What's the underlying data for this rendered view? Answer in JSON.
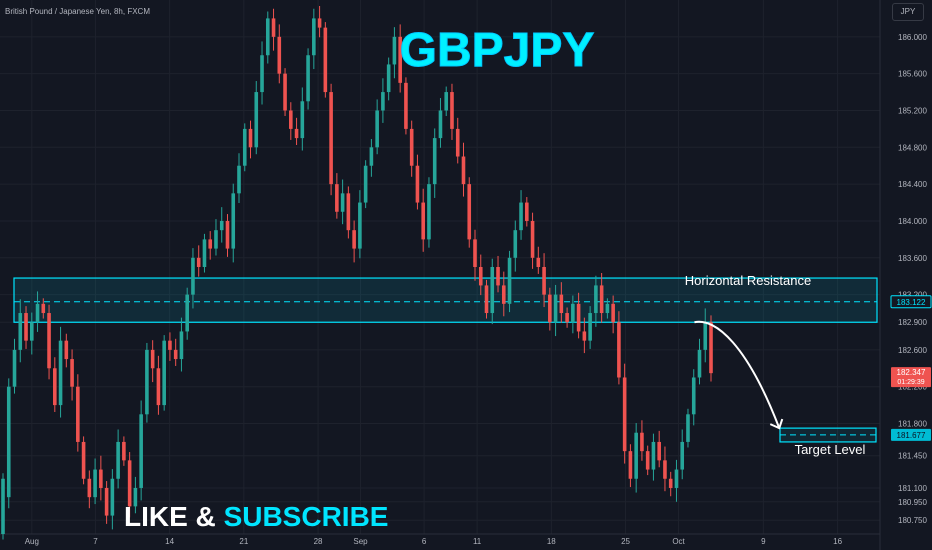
{
  "header": {
    "symbol_line": "British Pound / Japanese Yen, 8h, FXCM",
    "currency": "JPY"
  },
  "overlay": {
    "title": "GBPJPY",
    "cta_left": "LIKE & ",
    "cta_right": "SUBSCRIBE"
  },
  "colors": {
    "background": "#131722",
    "bull": "#26a69a",
    "bear": "#ef5350",
    "accent": "#00e5ff",
    "text": "#b2b5be"
  },
  "chart_data": {
    "type": "candlestick",
    "ylim": [
      180.6,
      186.4
    ],
    "y_ticks": [
      "186.000",
      "185.600",
      "185.200",
      "184.800",
      "184.400",
      "184.000",
      "183.600",
      "183.200",
      "182.900",
      "182.600",
      "182.200",
      "181.800",
      "181.450",
      "181.100",
      "180.950",
      "180.750"
    ],
    "y_tick_values": [
      186.0,
      185.6,
      185.2,
      184.8,
      184.4,
      184.0,
      183.6,
      183.2,
      182.9,
      182.6,
      182.2,
      181.8,
      181.45,
      181.1,
      180.95,
      180.75
    ],
    "x_ticks": [
      "Aug",
      "7",
      "14",
      "21",
      "28",
      "Sep",
      "6",
      "11",
      "18",
      "25",
      "Oct",
      "9",
      "16"
    ],
    "x_tick_days": [
      0,
      6,
      13,
      20,
      27,
      31,
      37,
      42,
      49,
      56,
      61,
      69,
      76
    ],
    "x_range_days": [
      -3,
      80
    ],
    "price_labels": {
      "current": "182.347",
      "countdown": "01:29:39",
      "resistance": "183.122",
      "target": "181.677"
    },
    "annotations": {
      "resistance_label": "Horizontal Resistance",
      "target_label": "Target Level",
      "resistance_zone": [
        182.9,
        183.38
      ],
      "resistance_level": 183.122,
      "target_zone": [
        181.6,
        181.75
      ],
      "target_level": 181.677
    },
    "projection": [
      [
        62.5,
        182.9
      ],
      [
        64.5,
        182.95
      ],
      [
        67.5,
        182.65
      ],
      [
        70.5,
        181.75
      ]
    ],
    "ohlc": [
      [
        180.6,
        181.2
      ],
      [
        181.0,
        182.2
      ],
      [
        182.2,
        182.6
      ],
      [
        182.6,
        183.0
      ],
      [
        183.0,
        182.7
      ],
      [
        182.7,
        182.9
      ],
      [
        182.9,
        183.1
      ],
      [
        183.1,
        183.0
      ],
      [
        183.0,
        182.4
      ],
      [
        182.4,
        182.0
      ],
      [
        182.0,
        182.7
      ],
      [
        182.7,
        182.5
      ],
      [
        182.5,
        182.2
      ],
      [
        182.2,
        181.6
      ],
      [
        181.6,
        181.2
      ],
      [
        181.2,
        181.0
      ],
      [
        181.0,
        181.3
      ],
      [
        181.3,
        181.1
      ],
      [
        181.1,
        180.8
      ],
      [
        180.8,
        181.2
      ],
      [
        181.2,
        181.6
      ],
      [
        181.6,
        181.4
      ],
      [
        181.4,
        180.9
      ],
      [
        180.9,
        181.1
      ],
      [
        181.1,
        181.9
      ],
      [
        181.9,
        182.6
      ],
      [
        182.6,
        182.4
      ],
      [
        182.4,
        182.0
      ],
      [
        182.0,
        182.7
      ],
      [
        182.7,
        182.6
      ],
      [
        182.6,
        182.5
      ],
      [
        182.5,
        182.8
      ],
      [
        182.8,
        183.2
      ],
      [
        183.2,
        183.6
      ],
      [
        183.6,
        183.5
      ],
      [
        183.5,
        183.8
      ],
      [
        183.8,
        183.7
      ],
      [
        183.7,
        183.9
      ],
      [
        183.9,
        184.0
      ],
      [
        184.0,
        183.7
      ],
      [
        183.7,
        184.3
      ],
      [
        184.3,
        184.6
      ],
      [
        184.6,
        185.0
      ],
      [
        185.0,
        184.8
      ],
      [
        184.8,
        185.4
      ],
      [
        185.4,
        185.8
      ],
      [
        185.8,
        186.2
      ],
      [
        186.2,
        186.0
      ],
      [
        186.0,
        185.6
      ],
      [
        185.6,
        185.2
      ],
      [
        185.2,
        185.0
      ],
      [
        185.0,
        184.9
      ],
      [
        184.9,
        185.3
      ],
      [
        185.3,
        185.8
      ],
      [
        185.8,
        186.2
      ],
      [
        186.2,
        186.1
      ],
      [
        186.1,
        185.4
      ],
      [
        185.4,
        184.4
      ],
      [
        184.4,
        184.1
      ],
      [
        184.1,
        184.3
      ],
      [
        184.3,
        183.9
      ],
      [
        183.9,
        183.7
      ],
      [
        183.7,
        184.2
      ],
      [
        184.2,
        184.6
      ],
      [
        184.6,
        184.8
      ],
      [
        184.8,
        185.2
      ],
      [
        185.2,
        185.4
      ],
      [
        185.4,
        185.7
      ],
      [
        185.7,
        186.0
      ],
      [
        186.0,
        185.5
      ],
      [
        185.5,
        185.0
      ],
      [
        185.0,
        184.6
      ],
      [
        184.6,
        184.2
      ],
      [
        184.2,
        183.8
      ],
      [
        183.8,
        184.4
      ],
      [
        184.4,
        184.9
      ],
      [
        184.9,
        185.2
      ],
      [
        185.2,
        185.4
      ],
      [
        185.4,
        185.0
      ],
      [
        185.0,
        184.7
      ],
      [
        184.7,
        184.4
      ],
      [
        184.4,
        183.8
      ],
      [
        183.8,
        183.5
      ],
      [
        183.5,
        183.3
      ],
      [
        183.3,
        183.0
      ],
      [
        183.0,
        183.5
      ],
      [
        183.5,
        183.3
      ],
      [
        183.3,
        183.1
      ],
      [
        183.1,
        183.6
      ],
      [
        183.6,
        183.9
      ],
      [
        183.9,
        184.2
      ],
      [
        184.2,
        184.0
      ],
      [
        184.0,
        183.6
      ],
      [
        183.6,
        183.5
      ],
      [
        183.5,
        183.2
      ],
      [
        183.2,
        182.9
      ],
      [
        182.9,
        183.2
      ],
      [
        183.2,
        183.0
      ],
      [
        183.0,
        182.9
      ],
      [
        182.9,
        183.1
      ],
      [
        183.1,
        182.8
      ],
      [
        182.8,
        182.7
      ],
      [
        182.7,
        183.0
      ],
      [
        183.0,
        183.3
      ],
      [
        183.3,
        183.0
      ],
      [
        183.0,
        183.1
      ],
      [
        183.1,
        182.9
      ],
      [
        182.9,
        182.3
      ],
      [
        182.3,
        181.5
      ],
      [
        181.5,
        181.2
      ],
      [
        181.2,
        181.7
      ],
      [
        181.7,
        181.5
      ],
      [
        181.5,
        181.3
      ],
      [
        181.3,
        181.6
      ],
      [
        181.6,
        181.4
      ],
      [
        181.4,
        181.2
      ],
      [
        181.2,
        181.1
      ],
      [
        181.1,
        181.3
      ],
      [
        181.3,
        181.6
      ],
      [
        181.6,
        181.9
      ],
      [
        181.9,
        182.3
      ],
      [
        182.3,
        182.6
      ],
      [
        182.6,
        182.9
      ],
      [
        182.9,
        182.347
      ]
    ]
  }
}
